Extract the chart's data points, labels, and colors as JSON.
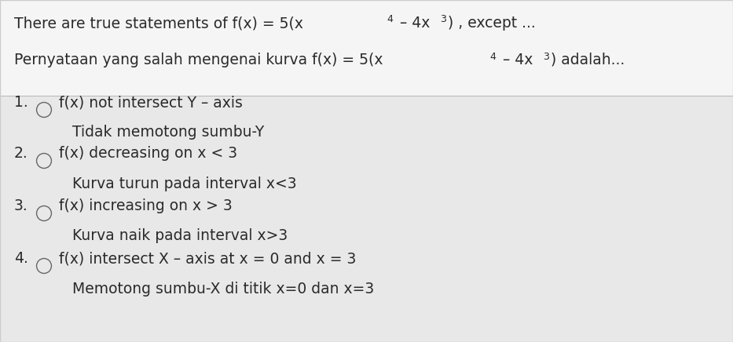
{
  "bg_color_header": "#f5f5f5",
  "bg_color_body": "#e8e8e8",
  "separator_color": "#bbbbbb",
  "text_color": "#2a2a2a",
  "circle_color": "#666666",
  "font_family": "DejaVu Sans",
  "title_fontsize": 13.5,
  "sup_fontsize": 9,
  "item_fontsize": 13.5,
  "sub_fontsize": 13.5,
  "line1_parts": [
    {
      "text": "There are true statements of f(x) = 5(x",
      "super": false
    },
    {
      "text": "4",
      "super": true
    },
    {
      "text": " – 4x",
      "super": false
    },
    {
      "text": "3",
      "super": true
    },
    {
      "text": ") , except ...",
      "super": false
    }
  ],
  "line2_parts": [
    {
      "text": "Pernyataan yang salah mengenai kurva f(x) = 5(x",
      "super": false
    },
    {
      "text": "4",
      "super": true
    },
    {
      "text": " – 4x",
      "super": false
    },
    {
      "text": "3",
      "super": true
    },
    {
      "text": ") adalah...",
      "super": false
    }
  ],
  "items": [
    {
      "number": "1.",
      "main_text": "f(x) not intersect Y – axis",
      "sub_text": "Tidak memotong sumbu-Y"
    },
    {
      "number": "2.",
      "main_text": "f(x) decreasing on x < 3",
      "sub_text": "Kurva turun pada interval x<3"
    },
    {
      "number": "3.",
      "main_text": "f(x) increasing on x > 3",
      "sub_text": "Kurva naik pada interval x>3"
    },
    {
      "number": "4.",
      "main_text": "f(x) intersect X – axis at x = 0 and x = 3",
      "sub_text": "Memotong sumbu-X di titik x=0 dan x=3"
    }
  ]
}
